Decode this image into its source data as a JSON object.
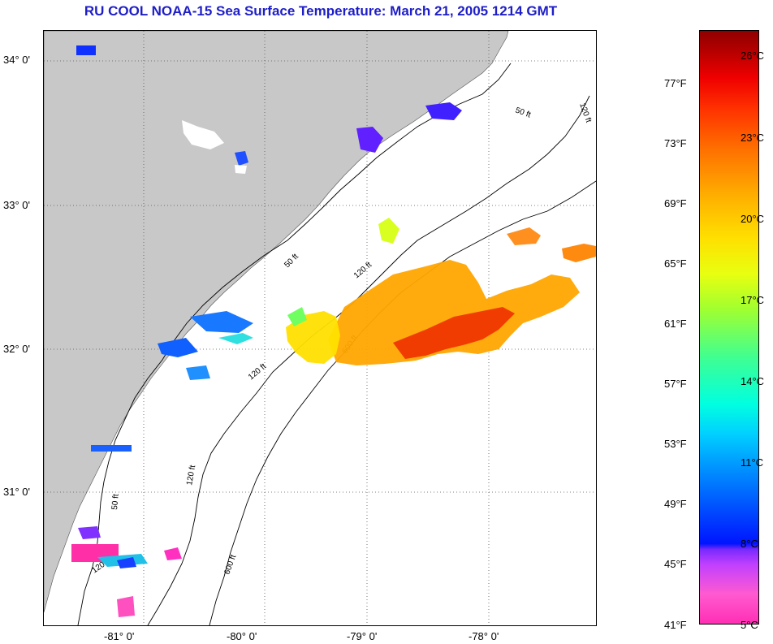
{
  "title": "RU COOL  NOAA-15  Sea Surface Temperature:  March 21, 2005 1214 GMT",
  "map": {
    "lat_labels": [
      "34° 0'",
      "33° 0'",
      "32° 0'",
      "31° 0'"
    ],
    "lon_labels": [
      "-81° 0'",
      "-80° 0'",
      "-79° 0'",
      "-78° 0'"
    ],
    "contour_labels": [
      "50 ft",
      "120 ft",
      "600 ft"
    ],
    "land_color": "#c8c8c8",
    "gridline_style": "dotted"
  },
  "colorbar": {
    "f_labels": [
      "77°F",
      "73°F",
      "69°F",
      "65°F",
      "61°F",
      "57°F",
      "53°F",
      "49°F",
      "45°F",
      "41°F"
    ],
    "c_labels": [
      "26°C",
      "23°C",
      "20°C",
      "17°C",
      "14°C",
      "11°C",
      "8°C",
      "5°C"
    ]
  }
}
